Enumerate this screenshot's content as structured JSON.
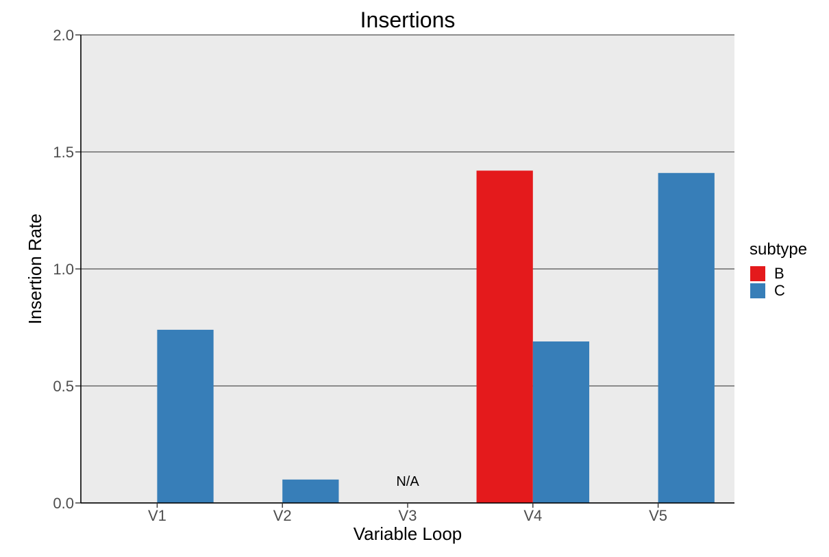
{
  "chart_data": {
    "type": "bar",
    "title": "Insertions",
    "xlabel": "Variable Loop",
    "ylabel": "Insertion Rate",
    "categories": [
      "V1",
      "V2",
      "V3",
      "V4",
      "V5"
    ],
    "series": [
      {
        "name": "B",
        "color": "#e41a1c",
        "values": [
          null,
          null,
          null,
          1.42,
          null
        ]
      },
      {
        "name": "C",
        "color": "#377eb8",
        "values": [
          0.74,
          0.1,
          null,
          0.69,
          1.41
        ]
      }
    ],
    "ylim": [
      0,
      2.0
    ],
    "yticks": [
      "0.0",
      "0.5",
      "1.0",
      "1.5",
      "2.0"
    ],
    "legend": {
      "title": "subtype",
      "position": "right"
    },
    "annotations": [
      {
        "category": "V3",
        "text": "N/A"
      }
    ],
    "panel_background": "#ebebeb",
    "gridline_color": "#6b6b6b",
    "grid": true
  }
}
